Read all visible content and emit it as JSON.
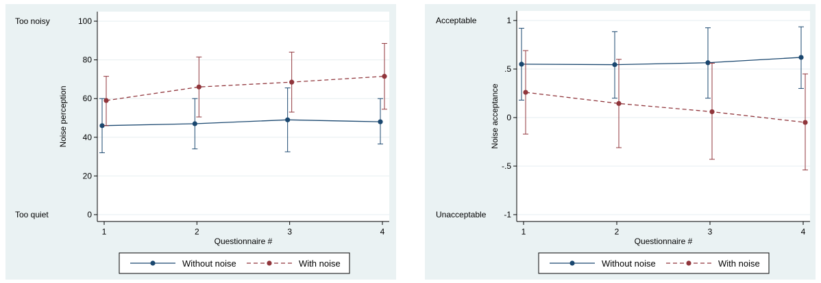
{
  "chart_data": [
    {
      "type": "line",
      "title": "",
      "xlabel": "Questionnaire #",
      "ylabel": "Noise perception",
      "x": [
        1,
        2,
        3,
        4
      ],
      "x_ticks": [
        "1",
        "2",
        "3",
        "4"
      ],
      "xlim": [
        1,
        4
      ],
      "ylim": [
        0,
        100
      ],
      "y_ticks": [
        {
          "value": 0,
          "label": "0"
        },
        {
          "value": 20,
          "label": "20"
        },
        {
          "value": 40,
          "label": "40"
        },
        {
          "value": 60,
          "label": "60"
        },
        {
          "value": 80,
          "label": "80"
        },
        {
          "value": 100,
          "label": "100"
        }
      ],
      "annotations": [
        {
          "text": "Too noisy",
          "at_y": 100
        },
        {
          "text": "Too quiet",
          "at_y": 0
        }
      ],
      "grid": true,
      "legend_position": "bottom",
      "series": [
        {
          "name": "Without noise",
          "color": "#1a476f",
          "dashed": false,
          "marker": "circle",
          "values": [
            46,
            47,
            49,
            48
          ],
          "error_low": [
            32,
            34,
            32.5,
            36.5
          ],
          "error_high": [
            60,
            60,
            65.5,
            60
          ]
        },
        {
          "name": "With noise",
          "color": "#90353b",
          "dashed": true,
          "marker": "circle",
          "values": [
            59,
            66,
            68.5,
            71.5
          ],
          "error_low": [
            46,
            50.5,
            53,
            54.5
          ],
          "error_high": [
            71.5,
            81.5,
            84,
            88.5
          ]
        }
      ]
    },
    {
      "type": "line",
      "title": "",
      "xlabel": "Questionnaire #",
      "ylabel": "Noise acceptance",
      "x": [
        1,
        2,
        3,
        4
      ],
      "x_ticks": [
        "1",
        "2",
        "3",
        "4"
      ],
      "xlim": [
        1,
        4
      ],
      "ylim": [
        -1,
        1
      ],
      "y_ticks": [
        {
          "value": -1,
          "label": "-1"
        },
        {
          "value": -0.5,
          "label": "-.5"
        },
        {
          "value": 0,
          "label": "0"
        },
        {
          "value": 0.5,
          "label": ".5"
        },
        {
          "value": 1,
          "label": "1"
        }
      ],
      "annotations": [
        {
          "text": "Acceptable",
          "at_y": 1
        },
        {
          "text": "Unacceptable",
          "at_y": -1
        }
      ],
      "grid": true,
      "legend_position": "bottom",
      "series": [
        {
          "name": "Without noise",
          "color": "#1a476f",
          "dashed": false,
          "marker": "circle",
          "values": [
            0.55,
            0.545,
            0.565,
            0.62
          ],
          "error_low": [
            0.18,
            0.2,
            0.2,
            0.3
          ],
          "error_high": [
            0.92,
            0.885,
            0.925,
            0.935
          ]
        },
        {
          "name": "With noise",
          "color": "#90353b",
          "dashed": true,
          "marker": "circle",
          "values": [
            0.26,
            0.145,
            0.06,
            -0.05
          ],
          "error_low": [
            -0.17,
            -0.31,
            -0.43,
            -0.54
          ],
          "error_high": [
            0.69,
            0.6,
            0.56,
            0.45
          ]
        }
      ]
    }
  ]
}
